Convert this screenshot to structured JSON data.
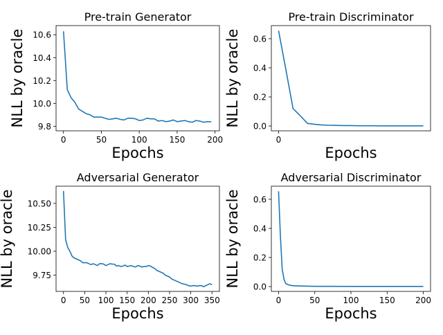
{
  "line_color": "#1f77b4",
  "chart_data": [
    {
      "type": "line",
      "title": "Pre-train Generator",
      "xlabel": "Epochs",
      "ylabel": "NLL by oracle",
      "xlim": [
        -9.8,
        205.8
      ],
      "ylim": [
        9.76,
        10.68
      ],
      "xticks": [
        0,
        50,
        100,
        150,
        200
      ],
      "xtick_labels": [
        "0",
        "50",
        "100",
        "150",
        "200"
      ],
      "yticks": [
        9.8,
        10.0,
        10.2,
        10.4,
        10.6
      ],
      "ytick_labels": [
        "9.8",
        "10.0",
        "10.2",
        "10.4",
        "10.6"
      ],
      "series": [
        {
          "name": "Pre-train Generator",
          "x": [
            0,
            5,
            10,
            15,
            20,
            25,
            30,
            35,
            40,
            45,
            50,
            55,
            60,
            65,
            70,
            75,
            80,
            85,
            90,
            95,
            100,
            105,
            110,
            115,
            120,
            125,
            130,
            135,
            140,
            145,
            150,
            155,
            160,
            165,
            170,
            175,
            180,
            185,
            190,
            195
          ],
          "y": [
            10.63,
            10.12,
            10.05,
            10.01,
            9.95,
            9.93,
            9.91,
            9.9,
            9.88,
            9.88,
            9.88,
            9.87,
            9.86,
            9.865,
            9.87,
            9.86,
            9.855,
            9.87,
            9.87,
            9.865,
            9.85,
            9.855,
            9.87,
            9.865,
            9.865,
            9.845,
            9.85,
            9.84,
            9.845,
            9.855,
            9.84,
            9.845,
            9.85,
            9.84,
            9.835,
            9.85,
            9.845,
            9.835,
            9.84,
            9.84
          ]
        }
      ]
    },
    {
      "type": "line",
      "title": "Pre-train Discriminator",
      "xlabel": "Epochs",
      "ylabel": "NLL by oracle",
      "xlim": [
        -1.0,
        21.0
      ],
      "ylim": [
        -0.033,
        0.69
      ],
      "xticks": [
        0
      ],
      "xtick_labels": [
        "0"
      ],
      "yticks": [
        0.0,
        0.2,
        0.4,
        0.6
      ],
      "ytick_labels": [
        "0.0",
        "0.2",
        "0.4",
        "0.6"
      ],
      "series": [
        {
          "name": "Pre-train Discriminator",
          "x": [
            0,
            1,
            2,
            3,
            4,
            5,
            6,
            7,
            8,
            9,
            10,
            11,
            12,
            13,
            14,
            15,
            16,
            17,
            18,
            19,
            20
          ],
          "y": [
            0.655,
            0.39,
            0.12,
            0.07,
            0.018,
            0.012,
            0.007,
            0.005,
            0.004,
            0.003,
            0.003,
            0.002,
            0.002,
            0.002,
            0.001,
            0.001,
            0.001,
            0.001,
            0.001,
            0.001,
            0.001
          ]
        }
      ]
    },
    {
      "type": "line",
      "title": "Adversarial Generator",
      "xlabel": "Epochs",
      "ylabel": "NLL by oracle",
      "xlim": [
        -17.5,
        367.5
      ],
      "ylim": [
        9.58,
        10.68
      ],
      "xticks": [
        0,
        50,
        100,
        150,
        200,
        250,
        300,
        350
      ],
      "xtick_labels": [
        "0",
        "50",
        "100",
        "150",
        "200",
        "250",
        "300",
        "350"
      ],
      "yticks": [
        9.75,
        10.0,
        10.25,
        10.5
      ],
      "ytick_labels": [
        "9.75",
        "10.00",
        "10.25",
        "10.50"
      ],
      "series": [
        {
          "name": "Adversarial Generator",
          "x": [
            0,
            5,
            10,
            15,
            20,
            25,
            30,
            35,
            40,
            45,
            50,
            55,
            60,
            65,
            70,
            75,
            80,
            85,
            90,
            95,
            100,
            105,
            110,
            115,
            120,
            125,
            130,
            135,
            140,
            145,
            150,
            155,
            160,
            165,
            170,
            175,
            180,
            185,
            190,
            195,
            200,
            205,
            210,
            215,
            220,
            225,
            230,
            235,
            240,
            245,
            250,
            255,
            260,
            265,
            270,
            275,
            280,
            285,
            290,
            295,
            300,
            305,
            310,
            315,
            320,
            325,
            330,
            335,
            340,
            345,
            350
          ],
          "y": [
            10.63,
            10.12,
            10.04,
            10.0,
            9.95,
            9.93,
            9.92,
            9.91,
            9.9,
            9.88,
            9.88,
            9.88,
            9.87,
            9.86,
            9.87,
            9.86,
            9.85,
            9.87,
            9.87,
            9.865,
            9.85,
            9.86,
            9.87,
            9.865,
            9.865,
            9.845,
            9.85,
            9.84,
            9.845,
            9.855,
            9.84,
            9.845,
            9.85,
            9.84,
            9.835,
            9.85,
            9.845,
            9.835,
            9.84,
            9.84,
            9.85,
            9.845,
            9.83,
            9.82,
            9.8,
            9.79,
            9.78,
            9.77,
            9.75,
            9.74,
            9.73,
            9.71,
            9.7,
            9.69,
            9.68,
            9.67,
            9.66,
            9.655,
            9.65,
            9.64,
            9.635,
            9.64,
            9.64,
            9.635,
            9.64,
            9.64,
            9.63,
            9.64,
            9.65,
            9.66,
            9.65
          ]
        }
      ]
    },
    {
      "type": "line",
      "title": "Adversarial Discriminator",
      "xlabel": "Epochs",
      "ylabel": "NLL by oracle",
      "xlim": [
        -10.0,
        210.0
      ],
      "ylim": [
        -0.033,
        0.69
      ],
      "xticks": [
        0,
        50,
        100,
        150,
        200
      ],
      "xtick_labels": [
        "0",
        "50",
        "100",
        "150",
        "200"
      ],
      "yticks": [
        0.0,
        0.2,
        0.4,
        0.6
      ],
      "ytick_labels": [
        "0.0",
        "0.2",
        "0.4",
        "0.6"
      ],
      "series": [
        {
          "name": "Adversarial Discriminator",
          "x": [
            0,
            2.5,
            5,
            7.5,
            10,
            15,
            20,
            30,
            40,
            50,
            75,
            100,
            125,
            150,
            175,
            200
          ],
          "y": [
            0.655,
            0.35,
            0.12,
            0.05,
            0.02,
            0.01,
            0.006,
            0.004,
            0.003,
            0.002,
            0.002,
            0.001,
            0.001,
            0.001,
            0.001,
            0.001
          ]
        }
      ]
    }
  ]
}
